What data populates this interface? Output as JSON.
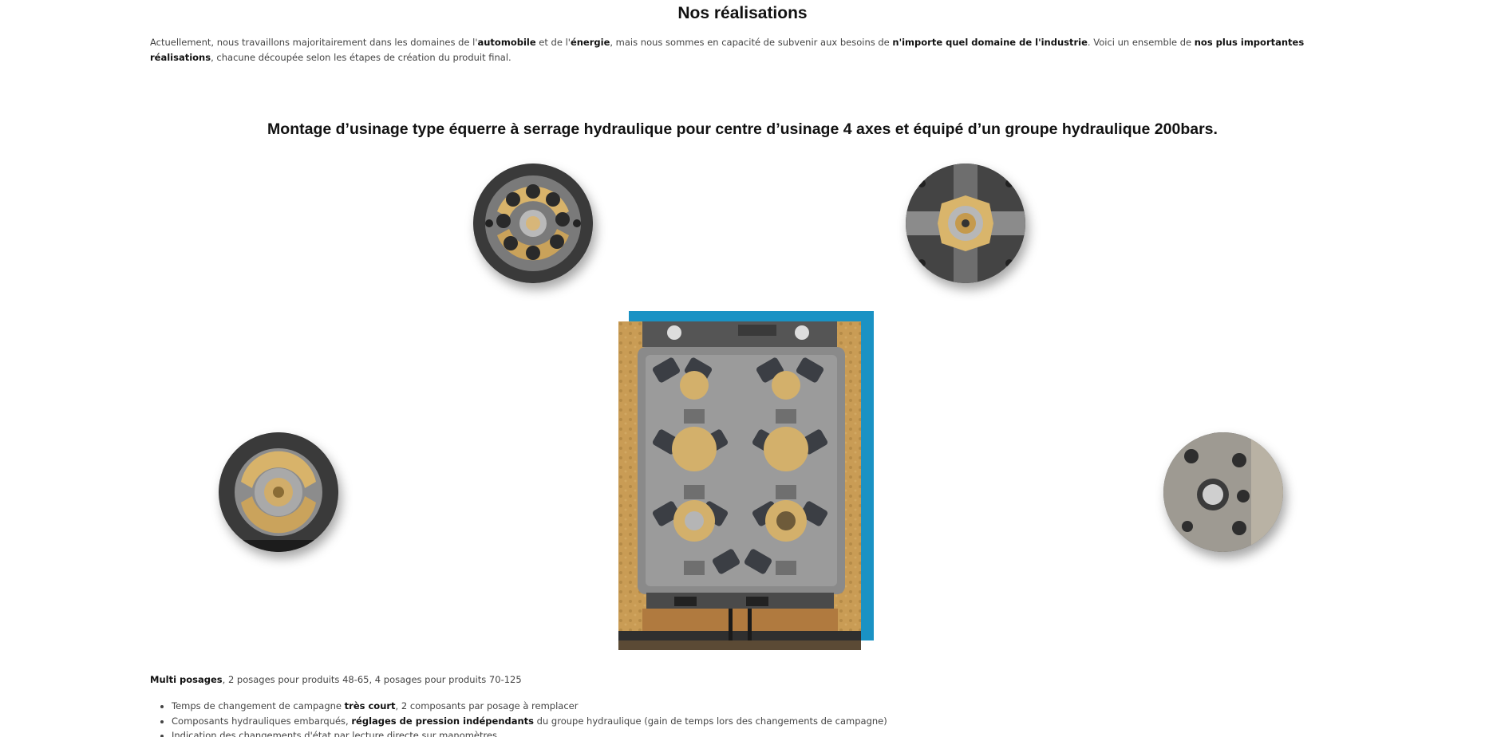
{
  "section": {
    "title": "Nos réalisations",
    "intro": {
      "t1": "Actuellement, nous travaillons majoritairement dans les domaines de l'",
      "b1": "automobile",
      "t2": " et de l'",
      "b2": "énergie",
      "t3": ", mais nous sommes en capacité de subvenir aux besoins de ",
      "b3": "n'importe quel domaine de l'industrie",
      "t4": ". Voici un ensemble de ",
      "b4": "nos plus importantes réalisations",
      "t5": ", chacune découpée selon les étapes de création du produit final."
    }
  },
  "product": {
    "title": "Montage d’usinage type équerre à serrage hydraulique pour centre d’usinage 4 axes et équipé d’un groupe hydraulique 200bars.",
    "images": {
      "top_left": "photo-circle-gear-detail",
      "top_right": "photo-circle-center-bore",
      "mid_left": "photo-circle-spline-hub",
      "mid_right": "photo-circle-plate-holes",
      "main": "hydraulic-angle-fixture-photo",
      "accent_color": "#1a92c4"
    },
    "features_lead": {
      "bold": "Multi posages",
      "text": ", 2 posages pour produits 48-65, 4 posages pour produits 70-125"
    },
    "features": [
      {
        "pre": "Temps de changement de campagne ",
        "bold": "très court",
        "post": ", 2 composants par posage à remplacer"
      },
      {
        "pre": "Composants hydrauliques embarqués, ",
        "bold": "réglages de pression indépendants",
        "post": " du groupe hydraulique (gain de temps lors des changements de campagne)"
      },
      {
        "pre": "Indication des changements d'état par lecture directe sur manomètres",
        "bold": "",
        "post": ""
      }
    ]
  }
}
